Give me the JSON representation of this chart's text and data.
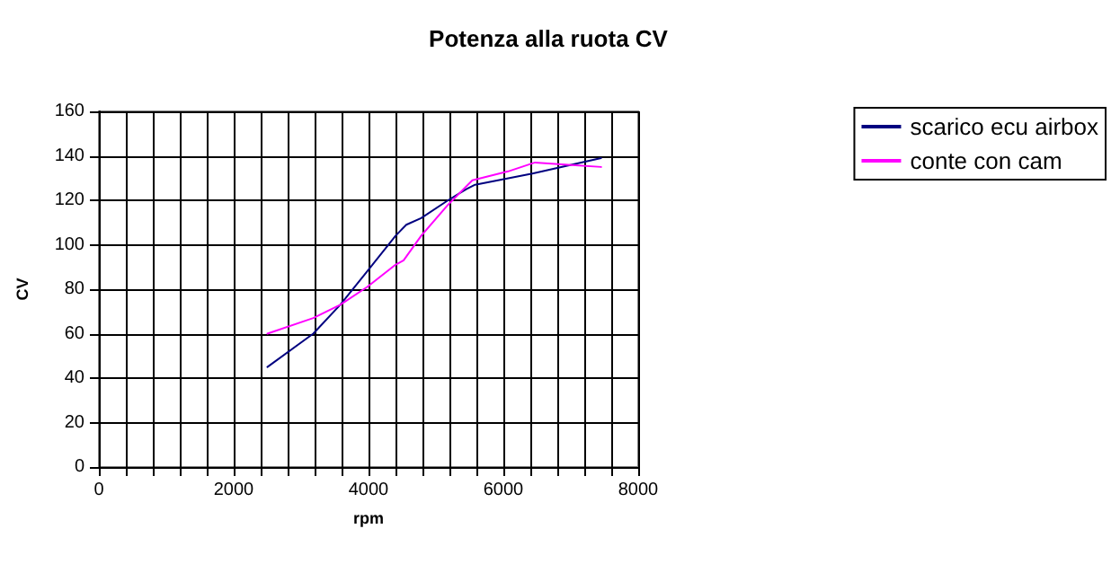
{
  "chart_data": {
    "type": "line",
    "title": "Potenza alla ruota CV",
    "xlabel": "rpm",
    "ylabel": "CV",
    "xlim": [
      0,
      8000
    ],
    "xticks": [
      0,
      {
        "value": 400,
        "label": null
      },
      {
        "value": 800,
        "label": null
      },
      {
        "value": 1200,
        "label": null
      },
      {
        "value": 1600,
        "label": null
      },
      2000,
      {
        "value": 2400,
        "label": null
      },
      {
        "value": 2800,
        "label": null
      },
      {
        "value": 3200,
        "label": null
      },
      {
        "value": 3600,
        "label": null
      },
      4000,
      {
        "value": 4400,
        "label": null
      },
      {
        "value": 4800,
        "label": null
      },
      {
        "value": 5200,
        "label": null
      },
      {
        "value": 5600,
        "label": null
      },
      6000,
      {
        "value": 6400,
        "label": null
      },
      {
        "value": 6800,
        "label": null
      },
      {
        "value": 7200,
        "label": null
      },
      {
        "value": 7600,
        "label": null
      },
      8000
    ],
    "ylim": [
      0,
      160
    ],
    "yticks": [
      0,
      20,
      40,
      60,
      80,
      100,
      120,
      140,
      160
    ],
    "grid": true,
    "legend": "right",
    "marker": "none",
    "line_style": "solid",
    "series": [
      {
        "name": "scarico ecu airbox",
        "color": "#000080",
        "x": [
          2500,
          3180,
          3580,
          3980,
          4400,
          4560,
          4780,
          5180,
          5450,
          5580,
          6430,
          7450
        ],
        "values": [
          45,
          60,
          73,
          88,
          104,
          109,
          112,
          120,
          125,
          127,
          132,
          139
        ]
      },
      {
        "name": "conte con cam",
        "color": "#ff00ff",
        "x": [
          2500,
          3180,
          3580,
          3980,
          4400,
          4520,
          4780,
          5180,
          5540,
          6070,
          6470,
          6960,
          7450
        ],
        "values": [
          60,
          67,
          73,
          81,
          91,
          93,
          104,
          118,
          129,
          133,
          137,
          136,
          135
        ]
      }
    ]
  }
}
